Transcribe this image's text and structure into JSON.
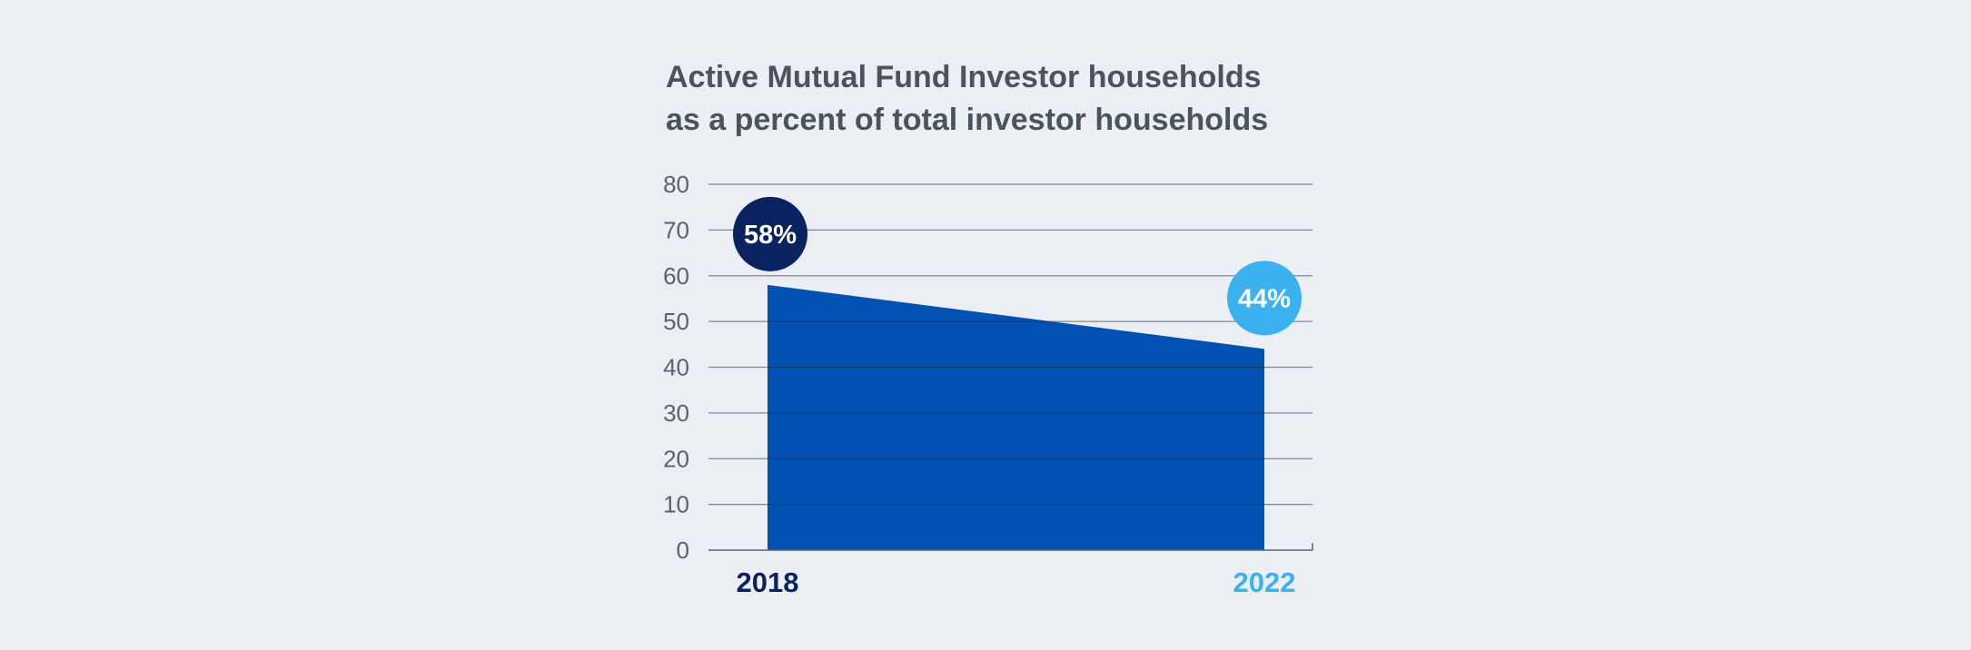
{
  "chart_data": {
    "type": "area",
    "title": "Active Mutual Fund Investor households as a percent of total investor households",
    "title_lines": [
      "Active Mutual Fund Investor households",
      "as a percent of total investor households"
    ],
    "categories": [
      "2018",
      "2022"
    ],
    "values": [
      58,
      44
    ],
    "data_labels": [
      "58%",
      "44%"
    ],
    "category_colors": [
      "#0b2260",
      "#3cb1f0"
    ],
    "badge_colors": [
      "#0b2260",
      "#3cb1f0"
    ],
    "area_color": "#0051b1",
    "ylim": [
      0,
      80
    ],
    "yticks": [
      "0",
      "10",
      "20",
      "30",
      "40",
      "50",
      "60",
      "70",
      "80"
    ],
    "xlabel": "",
    "ylabel": "",
    "grid": true,
    "legend": "none"
  }
}
